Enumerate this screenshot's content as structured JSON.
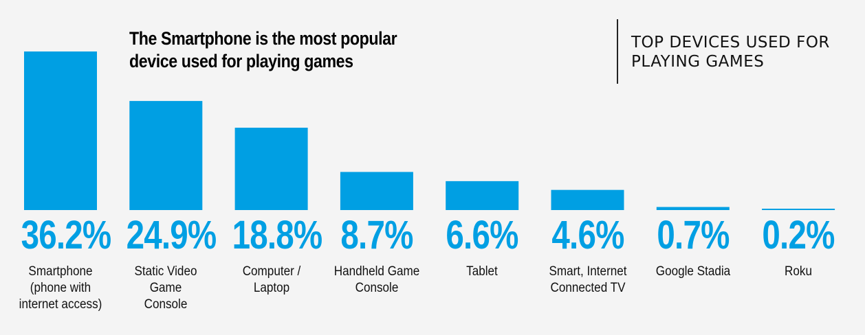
{
  "chart_data": {
    "type": "bar",
    "headline": "The Smartphone is the most popular device used for playing games",
    "side_title": "TOP DEVICES USED FOR PLAYING GAMES",
    "categories": [
      "Smartphone\n(phone with\ninternet access)",
      "Static Video Game\nConsole",
      "Computer /\nLaptop",
      "Handheld Game\nConsole",
      "Tablet",
      "Smart, Internet\nConnected TV",
      "Google Stadia",
      "Roku"
    ],
    "values": [
      36.2,
      24.9,
      18.8,
      8.7,
      6.6,
      4.6,
      0.7,
      0.2
    ],
    "value_labels": [
      "36.2%",
      "24.9%",
      "18.8%",
      "8.7%",
      "6.6%",
      "4.6%",
      "0.7%",
      "0.2%"
    ],
    "bar_color": "#009fe3",
    "ylim": [
      0,
      36.2
    ],
    "grid": false,
    "legend": "none"
  }
}
